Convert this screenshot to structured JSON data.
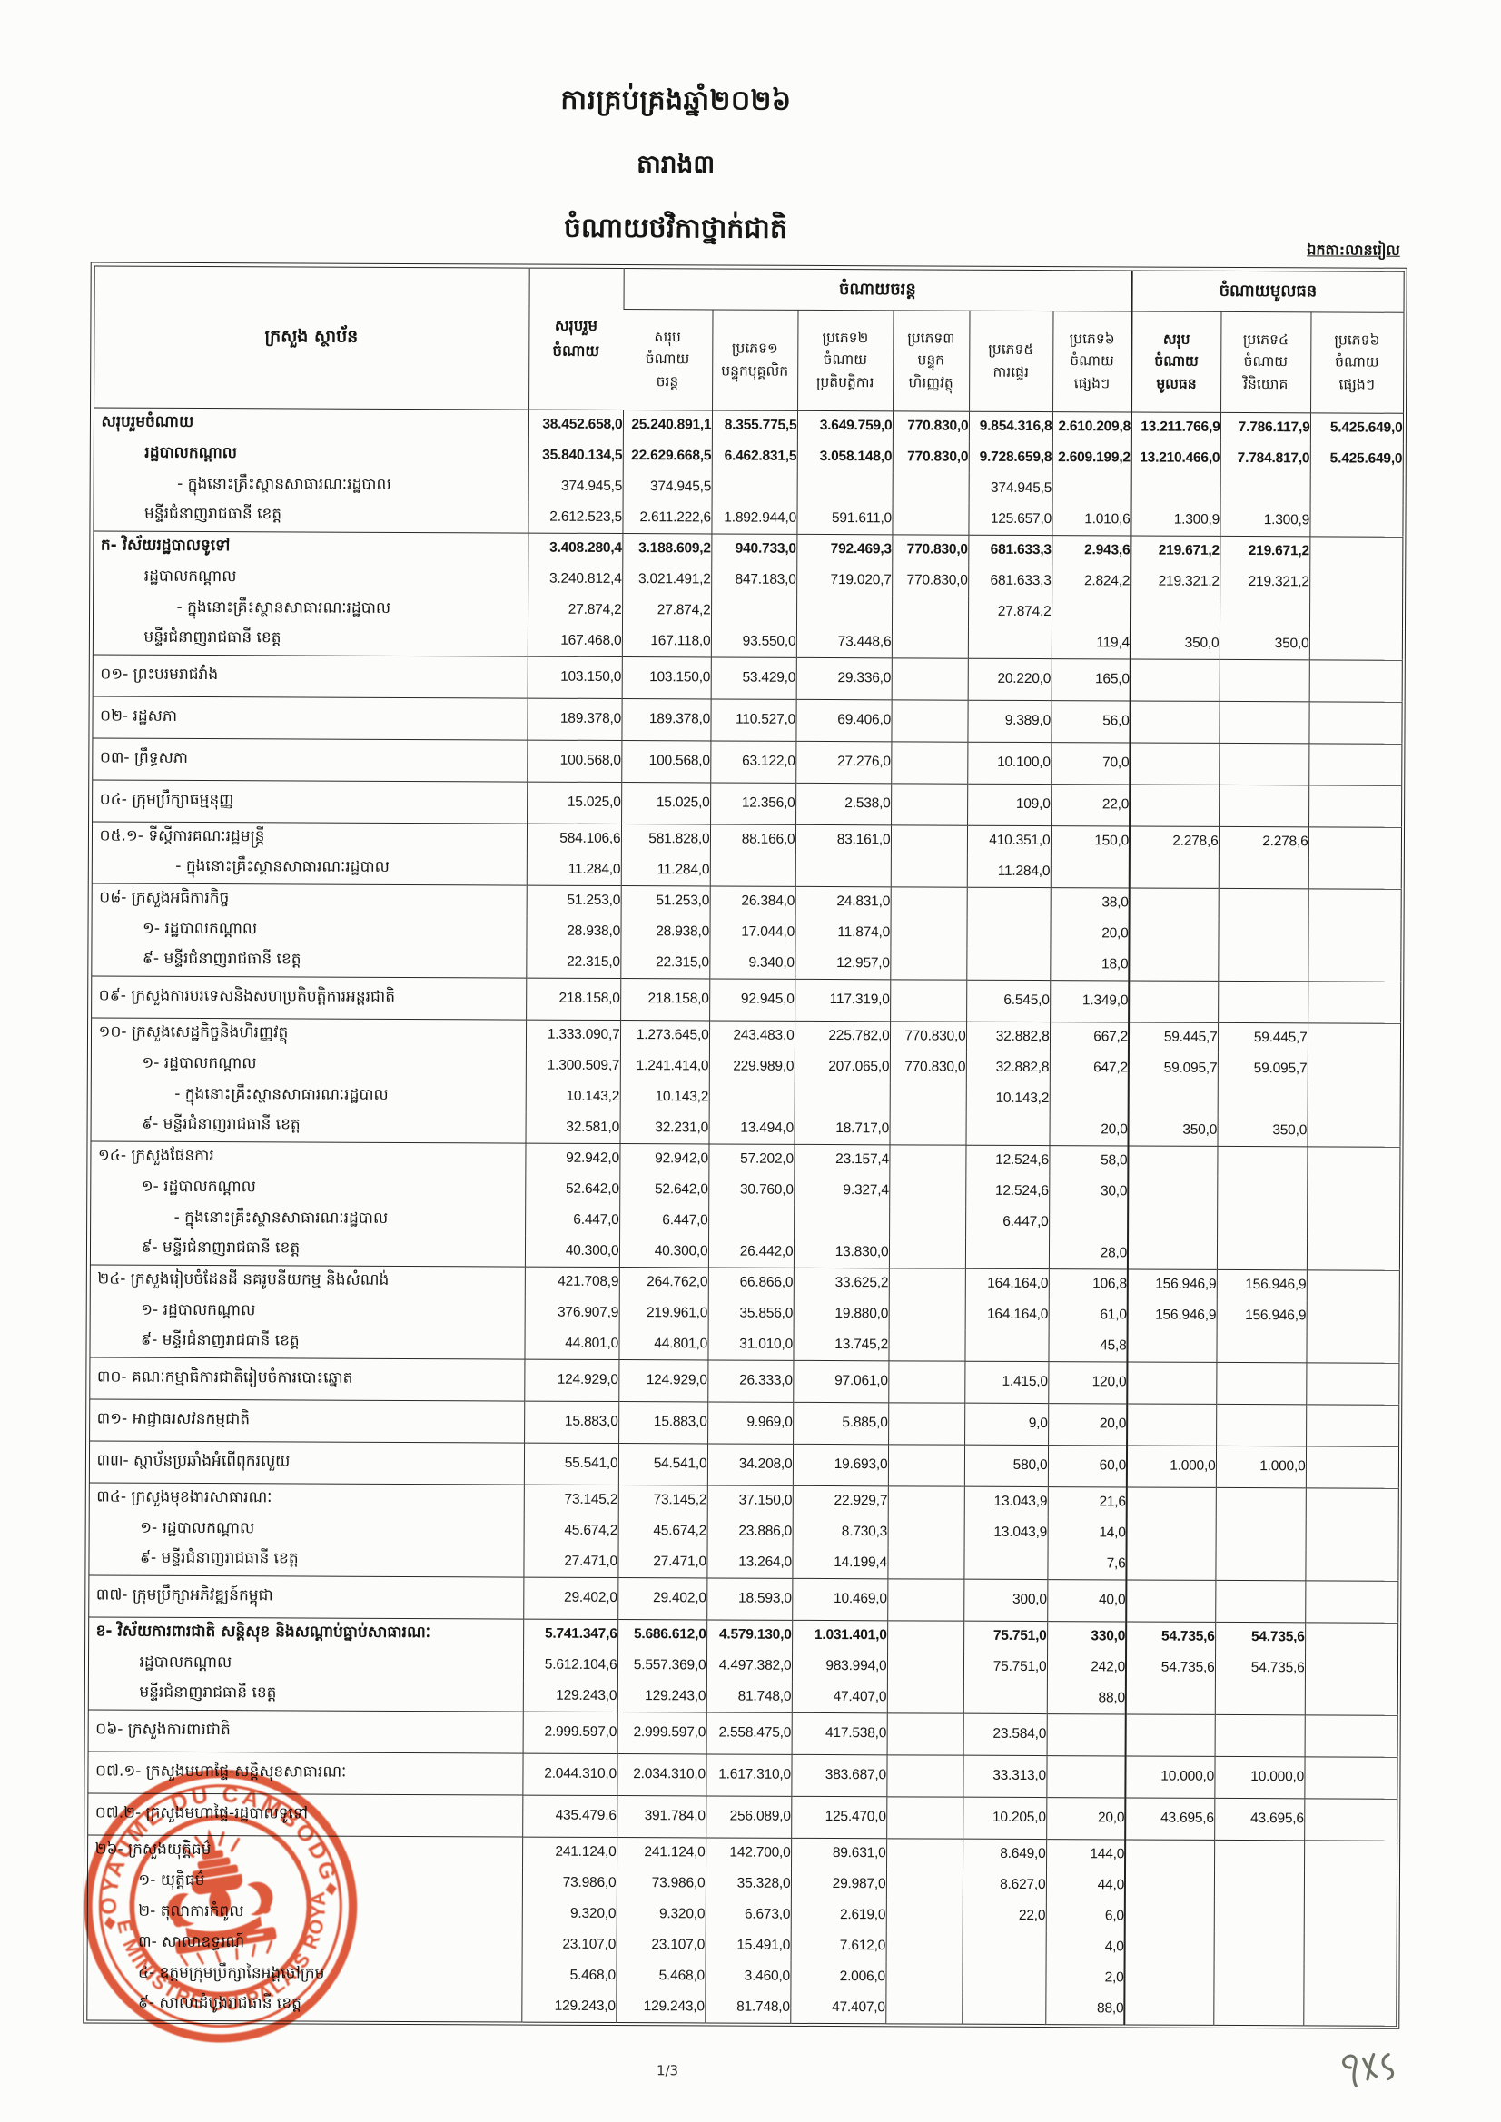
{
  "title": {
    "line1": "ការគ្រប់គ្រងឆ្នាំ២០២៦",
    "line2": "តារាង៣",
    "line3": "ចំណាយថវិកាថ្នាក់ជាតិ"
  },
  "unit_note": "ឯកតា:លានរៀល",
  "page_number": "1/3",
  "handwritten_mark": "៩២៥",
  "stamp": {
    "top_text": "ROYAUME DU CAMBODGE",
    "bottom_text": "LE MINISTRE DU PALAIS ROYAL",
    "color": "#dc4c2b"
  },
  "table": {
    "header": {
      "col_ministry": "ក្រសួង ស្ថាប័ន",
      "col_grand_total": "សរុបរួម\nចំណាយ",
      "group_current": "ចំណាយចរន្ត",
      "group_capital": "ចំណាយមូលធន",
      "current_cols": [
        "សរុប\nចំណាយ\nចរន្ត",
        "ប្រភេទ១\nបន្ទុកបុគ្គលិក",
        "ប្រភេទ២\nចំណាយ\nប្រតិបត្តិការ",
        "ប្រភេទ៣\nបន្ទុក\nហិរញ្ញវត្ថុ",
        "ប្រភេទ៥\nការផ្ទេរ",
        "ប្រភេទ៦\nចំណាយ\nផ្សេងៗ"
      ],
      "capital_cols": [
        "សរុប\nចំណាយ\nមូលធន",
        "ប្រភេទ៤\nចំណាយ\nវិនិយោគ",
        "ប្រភេទ៦\nចំណាយ\nផ្សេងៗ"
      ]
    },
    "rows": [
      {
        "label": "សរុបរួមចំណាយ",
        "i": 0,
        "b": 1,
        "t": 1,
        "v": [
          "38.452.658,0",
          "25.240.891,1",
          "8.355.775,5",
          "3.649.759,0",
          "770.830,0",
          "9.854.316,8",
          "2.610.209,8",
          "13.211.766,9",
          "7.786.117,9",
          "5.425.649,0"
        ]
      },
      {
        "label": "រដ្ឋបាលកណ្តាល",
        "i": 1,
        "b": 1,
        "v": [
          "35.840.134,5",
          "22.629.668,5",
          "6.462.831,5",
          "3.058.148,0",
          "770.830,0",
          "9.728.659,8",
          "2.609.199,2",
          "13.210.466,0",
          "7.784.817,0",
          "5.425.649,0"
        ]
      },
      {
        "label": "- ក្នុងនោះគ្រឹះស្ថានសាធារណៈរដ្ឋបាល",
        "i": 2,
        "v": [
          "374.945,5",
          "374.945,5",
          "",
          "",
          "",
          "374.945,5",
          "",
          "",
          "",
          ""
        ]
      },
      {
        "label": "មន្ទីរជំនាញរាជធានី ខេត្ត",
        "i": 1,
        "v": [
          "2.612.523,5",
          "2.611.222,6",
          "1.892.944,0",
          "591.611,0",
          "",
          "125.657,0",
          "1.010,6",
          "1.300,9",
          "1.300,9",
          ""
        ]
      },
      {
        "label": "ក- វិស័យរដ្ឋបាលទូទៅ",
        "i": 0,
        "b": 1,
        "t": 1,
        "v": [
          "3.408.280,4",
          "3.188.609,2",
          "940.733,0",
          "792.469,3",
          "770.830,0",
          "681.633,3",
          "2.943,6",
          "219.671,2",
          "219.671,2",
          ""
        ]
      },
      {
        "label": "រដ្ឋបាលកណ្តាល",
        "i": 1,
        "v": [
          "3.240.812,4",
          "3.021.491,2",
          "847.183,0",
          "719.020,7",
          "770.830,0",
          "681.633,3",
          "2.824,2",
          "219.321,2",
          "219.321,2",
          ""
        ]
      },
      {
        "label": "- ក្នុងនោះគ្រឹះស្ថានសាធារណៈរដ្ឋបាល",
        "i": 2,
        "v": [
          "27.874,2",
          "27.874,2",
          "",
          "",
          "",
          "27.874,2",
          "",
          "",
          "",
          ""
        ]
      },
      {
        "label": "មន្ទីរជំនាញរាជធានី ខេត្ត",
        "i": 1,
        "v": [
          "167.468,0",
          "167.118,0",
          "93.550,0",
          "73.448,6",
          "",
          "",
          "119,4",
          "350,0",
          "350,0",
          ""
        ]
      },
      {
        "label": "០១- ព្រះបរមរាជវាំង",
        "i": 0,
        "t": 1,
        "s": 1,
        "v": [
          "103.150,0",
          "103.150,0",
          "53.429,0",
          "29.336,0",
          "",
          "20.220,0",
          "165,0",
          "",
          "",
          ""
        ]
      },
      {
        "label": "០២- រដ្ឋសភា",
        "i": 0,
        "t": 1,
        "s": 1,
        "v": [
          "189.378,0",
          "189.378,0",
          "110.527,0",
          "69.406,0",
          "",
          "9.389,0",
          "56,0",
          "",
          "",
          ""
        ]
      },
      {
        "label": "០៣- ព្រឹទ្ធសភា",
        "i": 0,
        "t": 1,
        "s": 1,
        "v": [
          "100.568,0",
          "100.568,0",
          "63.122,0",
          "27.276,0",
          "",
          "10.100,0",
          "70,0",
          "",
          "",
          ""
        ]
      },
      {
        "label": "០៤- ក្រុមប្រឹក្សាធម្មនុញ្ញ",
        "i": 0,
        "t": 1,
        "s": 1,
        "v": [
          "15.025,0",
          "15.025,0",
          "12.356,0",
          "2.538,0",
          "",
          "109,0",
          "22,0",
          "",
          "",
          ""
        ]
      },
      {
        "label": "០៥.១- ទីស្តីការគណៈរដ្ឋមន្ត្រី",
        "i": 0,
        "t": 1,
        "v": [
          "584.106,6",
          "581.828,0",
          "88.166,0",
          "83.161,0",
          "",
          "410.351,0",
          "150,0",
          "2.278,6",
          "2.278,6",
          ""
        ]
      },
      {
        "label": "- ក្នុងនោះគ្រឹះស្ថានសាធារណៈរដ្ឋបាល",
        "i": 2,
        "v": [
          "11.284,0",
          "11.284,0",
          "",
          "",
          "",
          "11.284,0",
          "",
          "",
          "",
          ""
        ]
      },
      {
        "label": "០៨- ក្រសួងអធិការកិច្ច",
        "i": 0,
        "t": 1,
        "v": [
          "51.253,0",
          "51.253,0",
          "26.384,0",
          "24.831,0",
          "",
          "",
          "38,0",
          "",
          "",
          ""
        ]
      },
      {
        "label": "១- រដ្ឋបាលកណ្តាល",
        "i": 1,
        "v": [
          "28.938,0",
          "28.938,0",
          "17.044,0",
          "11.874,0",
          "",
          "",
          "20,0",
          "",
          "",
          ""
        ]
      },
      {
        "label": "៩- មន្ទីរជំនាញរាជធានី ខេត្ត",
        "i": 1,
        "v": [
          "22.315,0",
          "22.315,0",
          "9.340,0",
          "12.957,0",
          "",
          "",
          "18,0",
          "",
          "",
          ""
        ]
      },
      {
        "label": "០៩- ក្រសួងការបរទេសនិងសហប្រតិបត្តិការអន្តរជាតិ",
        "i": 0,
        "t": 1,
        "s": 1,
        "v": [
          "218.158,0",
          "218.158,0",
          "92.945,0",
          "117.319,0",
          "",
          "6.545,0",
          "1.349,0",
          "",
          "",
          ""
        ]
      },
      {
        "label": "១០- ក្រសួងសេដ្ឋកិច្ចនិងហិរញ្ញវត្ថុ",
        "i": 0,
        "t": 1,
        "v": [
          "1.333.090,7",
          "1.273.645,0",
          "243.483,0",
          "225.782,0",
          "770.830,0",
          "32.882,8",
          "667,2",
          "59.445,7",
          "59.445,7",
          ""
        ]
      },
      {
        "label": "១- រដ្ឋបាលកណ្តាល",
        "i": 1,
        "v": [
          "1.300.509,7",
          "1.241.414,0",
          "229.989,0",
          "207.065,0",
          "770.830,0",
          "32.882,8",
          "647,2",
          "59.095,7",
          "59.095,7",
          ""
        ]
      },
      {
        "label": "- ក្នុងនោះគ្រឹះស្ថានសាធារណៈរដ្ឋបាល",
        "i": 2,
        "v": [
          "10.143,2",
          "10.143,2",
          "",
          "",
          "",
          "10.143,2",
          "",
          "",
          "",
          ""
        ]
      },
      {
        "label": "៩- មន្ទីរជំនាញរាជធានី ខេត្ត",
        "i": 1,
        "v": [
          "32.581,0",
          "32.231,0",
          "13.494,0",
          "18.717,0",
          "",
          "",
          "20,0",
          "350,0",
          "350,0",
          ""
        ]
      },
      {
        "label": "១៤- ក្រសួងផែនការ",
        "i": 0,
        "t": 1,
        "v": [
          "92.942,0",
          "92.942,0",
          "57.202,0",
          "23.157,4",
          "",
          "12.524,6",
          "58,0",
          "",
          "",
          ""
        ]
      },
      {
        "label": "១- រដ្ឋបាលកណ្តាល",
        "i": 1,
        "v": [
          "52.642,0",
          "52.642,0",
          "30.760,0",
          "9.327,4",
          "",
          "12.524,6",
          "30,0",
          "",
          "",
          ""
        ]
      },
      {
        "label": "- ក្នុងនោះគ្រឹះស្ថានសាធារណៈរដ្ឋបាល",
        "i": 2,
        "v": [
          "6.447,0",
          "6.447,0",
          "",
          "",
          "",
          "6.447,0",
          "",
          "",
          "",
          ""
        ]
      },
      {
        "label": "៩- មន្ទីរជំនាញរាជធានី ខេត្ត",
        "i": 1,
        "v": [
          "40.300,0",
          "40.300,0",
          "26.442,0",
          "13.830,0",
          "",
          "",
          "28,0",
          "",
          "",
          ""
        ]
      },
      {
        "label": "២៤- ក្រសួងរៀបចំដែនដី នគរូបនីយកម្ម និងសំណង់",
        "i": 0,
        "t": 1,
        "v": [
          "421.708,9",
          "264.762,0",
          "66.866,0",
          "33.625,2",
          "",
          "164.164,0",
          "106,8",
          "156.946,9",
          "156.946,9",
          ""
        ]
      },
      {
        "label": "១- រដ្ឋបាលកណ្តាល",
        "i": 1,
        "v": [
          "376.907,9",
          "219.961,0",
          "35.856,0",
          "19.880,0",
          "",
          "164.164,0",
          "61,0",
          "156.946,9",
          "156.946,9",
          ""
        ]
      },
      {
        "label": "៩- មន្ទីរជំនាញរាជធានី ខេត្ត",
        "i": 1,
        "v": [
          "44.801,0",
          "44.801,0",
          "31.010,0",
          "13.745,2",
          "",
          "",
          "45,8",
          "",
          "",
          ""
        ]
      },
      {
        "label": "៣០- គណៈកម្មាធិការជាតិរៀបចំការបោះឆ្នោត",
        "i": 0,
        "t": 1,
        "s": 1,
        "v": [
          "124.929,0",
          "124.929,0",
          "26.333,0",
          "97.061,0",
          "",
          "1.415,0",
          "120,0",
          "",
          "",
          ""
        ]
      },
      {
        "label": "៣១- អាជ្ញាធរសវនកម្មជាតិ",
        "i": 0,
        "t": 1,
        "s": 1,
        "v": [
          "15.883,0",
          "15.883,0",
          "9.969,0",
          "5.885,0",
          "",
          "9,0",
          "20,0",
          "",
          "",
          ""
        ]
      },
      {
        "label": "៣៣- ស្ថាប័នប្រឆាំងអំពើពុករលួយ",
        "i": 0,
        "t": 1,
        "s": 1,
        "v": [
          "55.541,0",
          "54.541,0",
          "34.208,0",
          "19.693,0",
          "",
          "580,0",
          "60,0",
          "1.000,0",
          "1.000,0",
          ""
        ]
      },
      {
        "label": "៣៤- ក្រសួងមុខងារសាធារណៈ",
        "i": 0,
        "t": 1,
        "v": [
          "73.145,2",
          "73.145,2",
          "37.150,0",
          "22.929,7",
          "",
          "13.043,9",
          "21,6",
          "",
          "",
          ""
        ]
      },
      {
        "label": "១- រដ្ឋបាលកណ្តាល",
        "i": 1,
        "v": [
          "45.674,2",
          "45.674,2",
          "23.886,0",
          "8.730,3",
          "",
          "13.043,9",
          "14,0",
          "",
          "",
          ""
        ]
      },
      {
        "label": "៩- មន្ទីរជំនាញរាជធានី ខេត្ត",
        "i": 1,
        "v": [
          "27.471,0",
          "27.471,0",
          "13.264,0",
          "14.199,4",
          "",
          "",
          "7,6",
          "",
          "",
          ""
        ]
      },
      {
        "label": "៣៧- ក្រុមប្រឹក្សាអភិវឌ្ឍន៍កម្ពុជា",
        "i": 0,
        "t": 1,
        "s": 1,
        "v": [
          "29.402,0",
          "29.402,0",
          "18.593,0",
          "10.469,0",
          "",
          "300,0",
          "40,0",
          "",
          "",
          ""
        ]
      },
      {
        "label": "ខ- វិស័យការពារជាតិ សន្តិសុខ និងសណ្តាប់ធ្នាប់សាធារណៈ",
        "i": 0,
        "b": 1,
        "t": 1,
        "v": [
          "5.741.347,6",
          "5.686.612,0",
          "4.579.130,0",
          "1.031.401,0",
          "",
          "75.751,0",
          "330,0",
          "54.735,6",
          "54.735,6",
          ""
        ]
      },
      {
        "label": "រដ្ឋបាលកណ្តាល",
        "i": 1,
        "v": [
          "5.612.104,6",
          "5.557.369,0",
          "4.497.382,0",
          "983.994,0",
          "",
          "75.751,0",
          "242,0",
          "54.735,6",
          "54.735,6",
          ""
        ]
      },
      {
        "label": "មន្ទីរជំនាញរាជធានី ខេត្ត",
        "i": 1,
        "v": [
          "129.243,0",
          "129.243,0",
          "81.748,0",
          "47.407,0",
          "",
          "",
          "88,0",
          "",
          "",
          ""
        ]
      },
      {
        "label": "០៦- ក្រសួងការពារជាតិ",
        "i": 0,
        "t": 1,
        "s": 1,
        "v": [
          "2.999.597,0",
          "2.999.597,0",
          "2.558.475,0",
          "417.538,0",
          "",
          "23.584,0",
          "",
          "",
          "",
          ""
        ]
      },
      {
        "label": "០៧.១- ក្រសួងមហាផ្ទៃ-សន្តិសុខសាធារណៈ",
        "i": 0,
        "t": 1,
        "s": 1,
        "v": [
          "2.044.310,0",
          "2.034.310,0",
          "1.617.310,0",
          "383.687,0",
          "",
          "33.313,0",
          "",
          "10.000,0",
          "10.000,0",
          ""
        ]
      },
      {
        "label": "០៧.២- ក្រសួងមហាផ្ទៃ-រដ្ឋបាលទូទៅ",
        "i": 0,
        "t": 1,
        "s": 1,
        "v": [
          "435.479,6",
          "391.784,0",
          "256.089,0",
          "125.470,0",
          "",
          "10.205,0",
          "20,0",
          "43.695,6",
          "43.695,6",
          ""
        ]
      },
      {
        "label": "២៦- ក្រសួងយុត្តិធម៌",
        "i": 0,
        "t": 1,
        "v": [
          "241.124,0",
          "241.124,0",
          "142.700,0",
          "89.631,0",
          "",
          "8.649,0",
          "144,0",
          "",
          "",
          ""
        ]
      },
      {
        "label": "១- យុត្តិធម៌",
        "i": 1,
        "v": [
          "73.986,0",
          "73.986,0",
          "35.328,0",
          "29.987,0",
          "",
          "8.627,0",
          "44,0",
          "",
          "",
          ""
        ]
      },
      {
        "label": "២- តុលាការកំពូល",
        "i": 1,
        "v": [
          "9.320,0",
          "9.320,0",
          "6.673,0",
          "2.619,0",
          "",
          "22,0",
          "6,0",
          "",
          "",
          ""
        ]
      },
      {
        "label": "៣- សាលាឧទ្ធរណ៍",
        "i": 1,
        "v": [
          "23.107,0",
          "23.107,0",
          "15.491,0",
          "7.612,0",
          "",
          "",
          "4,0",
          "",
          "",
          ""
        ]
      },
      {
        "label": "៤- ឧត្តមក្រុមប្រឹក្សានៃអង្គចៅក្រម",
        "i": 1,
        "v": [
          "5.468,0",
          "5.468,0",
          "3.460,0",
          "2.006,0",
          "",
          "",
          "2,0",
          "",
          "",
          ""
        ]
      },
      {
        "label": "៩- សាលាដំបូងរាជធានី ខេត្ត",
        "i": 1,
        "v": [
          "129.243,0",
          "129.243,0",
          "81.748,0",
          "47.407,0",
          "",
          "",
          "88,0",
          "",
          "",
          ""
        ]
      }
    ]
  }
}
